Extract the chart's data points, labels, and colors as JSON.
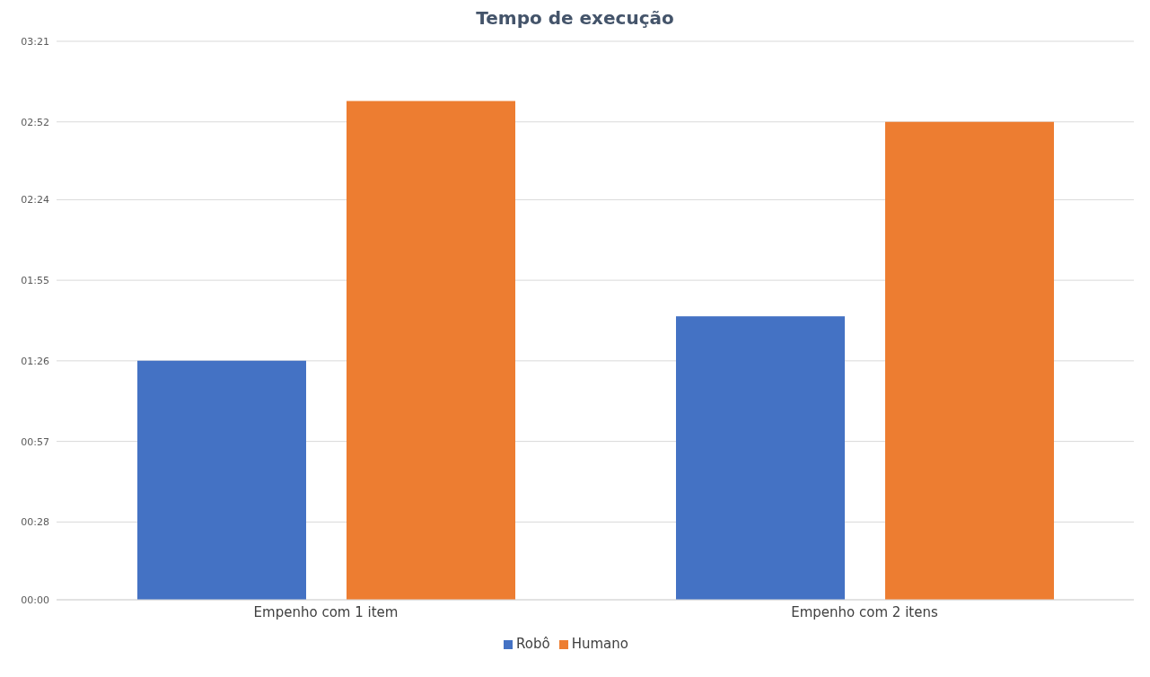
{
  "chart_data": {
    "type": "bar",
    "title": "Tempo de execução",
    "categories": [
      "Empenho com 1 item",
      "Empenho com 2 itens"
    ],
    "series": [
      {
        "name": "Robô",
        "color": "#4472c4",
        "values": [
          86,
          102
        ]
      },
      {
        "name": "Humano",
        "color": "#ed7d31",
        "values": [
          179.5,
          172
        ]
      }
    ],
    "ylim": [
      0,
      201
    ],
    "yticks": [
      {
        "value": 0,
        "label": "00:00"
      },
      {
        "value": 28,
        "label": "00:28"
      },
      {
        "value": 57,
        "label": "00:57"
      },
      {
        "value": 86,
        "label": "01:26"
      },
      {
        "value": 115,
        "label": "01:55"
      },
      {
        "value": 144,
        "label": "02:24"
      },
      {
        "value": 172,
        "label": "02:52"
      },
      {
        "value": 201,
        "label": "03:21"
      }
    ],
    "grid": "y",
    "legend": "bottom"
  }
}
